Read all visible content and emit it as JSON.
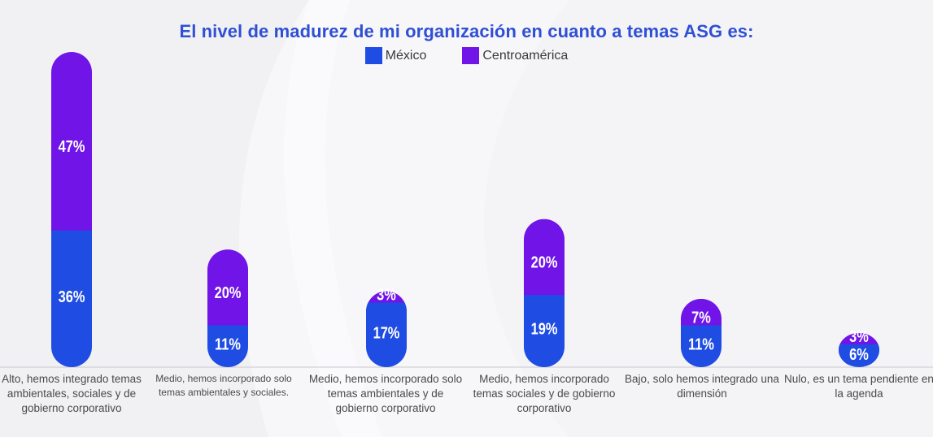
{
  "chart_data": {
    "type": "bar",
    "stacked": true,
    "title": "El nivel de madurez de mi organización en cuanto a temas ASG es:",
    "categories": [
      "Alto, hemos integrado temas ambientales, sociales y de gobierno corporativo",
      "Medio, hemos incorporado solo temas ambientales y sociales.",
      "Medio, hemos incorporado solo temas ambientales y de gobierno corporativo",
      "Medio, hemos incorporado temas sociales y de gobierno corporativo",
      "Bajo, solo hemos integrado una dimensión",
      "Nulo, es un tema pendiente en la agenda"
    ],
    "series": [
      {
        "name": "México",
        "color": "#1f4de3",
        "values": [
          36,
          11,
          17,
          19,
          11,
          6
        ]
      },
      {
        "name": "Centroamérica",
        "color": "#7014e8",
        "values": [
          47,
          20,
          3,
          20,
          7,
          3
        ]
      }
    ],
    "value_suffix": "%",
    "legend_position": "top-center",
    "ylim": [
      0,
      83
    ]
  },
  "legend": {
    "mexico": "México",
    "centroamerica": "Centroamérica"
  },
  "labels": {
    "cat0": "Alto, hemos integrado temas ambientales, sociales y de gobierno corporativo",
    "cat1": "Medio, hemos incorporado solo temas ambientales y sociales.",
    "cat2": "Medio, hemos incorporado solo temas ambientales y de gobierno corporativo",
    "cat3": "Medio, hemos incorporado temas sociales y de gobierno corporativo",
    "cat4": "Bajo, solo hemos integrado una dimensión",
    "cat5": "Nulo, es un tema pendiente en la agenda"
  }
}
